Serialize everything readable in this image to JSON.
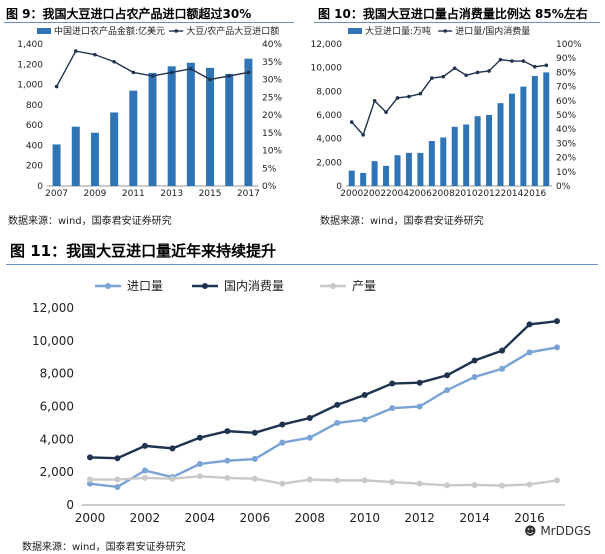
{
  "figures": {
    "fig9": {
      "title": "图 9：我国大豆进口占农产品进口额超过30%",
      "source": "数据来源：wind，国泰君安证券研究"
    },
    "fig10": {
      "title": "图 10：我国大豆进口量占消费量比例达 85%左右",
      "source": "数据来源：wind，国泰君安证券研究"
    },
    "fig11": {
      "title": "图 11：我国大豆进口量近年来持续提升",
      "source": "数据来源：wind，国泰君安证券研究"
    }
  },
  "watermark": "MrDDGS",
  "colors": {
    "bar": "#2f74b5",
    "line_dark": "#1f3350",
    "line_light": "#7aa3d6",
    "line_gray": "#c9c9c9"
  },
  "chart_data": [
    {
      "id": "fig9",
      "type": "bar",
      "title": "图 9：我国大豆进口占农产品进口额超过30%",
      "x": [
        2007,
        2008,
        2009,
        2010,
        2011,
        2012,
        2013,
        2014,
        2015,
        2016,
        2017
      ],
      "xticks": [
        "2007",
        "2009",
        "2011",
        "2013",
        "2015",
        "2017"
      ],
      "series": [
        {
          "name": "中国进口农产品金额:亿美元",
          "type": "bar",
          "axis": "left",
          "values": [
            410,
            585,
            525,
            725,
            940,
            1115,
            1180,
            1215,
            1165,
            1105,
            1255
          ]
        },
        {
          "name": "大豆/农产品大豆进口额",
          "type": "line",
          "axis": "right",
          "values": [
            28,
            38,
            37,
            35,
            32,
            31,
            32,
            33,
            30,
            31,
            32
          ]
        }
      ],
      "ylim_left": [
        0,
        1400
      ],
      "yticks_left": [
        "0",
        "200",
        "400",
        "600",
        "800",
        "1,000",
        "1,200",
        "1,400"
      ],
      "ylim_right": [
        0,
        40
      ],
      "yticks_right": [
        "0%",
        "5%",
        "10%",
        "15%",
        "20%",
        "25%",
        "30%",
        "35%",
        "40%"
      ]
    },
    {
      "id": "fig10",
      "type": "bar",
      "title": "图 10：我国大豆进口量占消费量比例达 85%左右",
      "x": [
        2000,
        2001,
        2002,
        2003,
        2004,
        2005,
        2006,
        2007,
        2008,
        2009,
        2010,
        2011,
        2012,
        2013,
        2014,
        2015,
        2016,
        2017
      ],
      "xticks": [
        "2000",
        "2002",
        "2004",
        "2006",
        "2008",
        "2010",
        "2012",
        "2014",
        "2016"
      ],
      "series": [
        {
          "name": "大豆进口量:万吨",
          "type": "bar",
          "axis": "left",
          "values": [
            1300,
            1100,
            2100,
            1700,
            2600,
            2800,
            2800,
            3800,
            4100,
            5000,
            5200,
            5900,
            6000,
            7000,
            7800,
            8400,
            9300,
            9600
          ]
        },
        {
          "name": "进口量/国内消费量",
          "type": "line",
          "axis": "right",
          "values": [
            45,
            36,
            60,
            52,
            62,
            63,
            65,
            76,
            77,
            83,
            78,
            80,
            81,
            89,
            88,
            88,
            84,
            85
          ]
        }
      ],
      "ylim_left": [
        0,
        12000
      ],
      "yticks_left": [
        "0",
        "2,000",
        "4,000",
        "6,000",
        "8,000",
        "10,000",
        "12,000"
      ],
      "ylim_right": [
        0,
        100
      ],
      "yticks_right": [
        "0%",
        "10%",
        "20%",
        "30%",
        "40%",
        "50%",
        "60%",
        "70%",
        "80%",
        "90%",
        "100%"
      ]
    },
    {
      "id": "fig11",
      "type": "line",
      "title": "图 11：我国大豆进口量近年来持续提升",
      "x": [
        2000,
        2001,
        2002,
        2003,
        2004,
        2005,
        2006,
        2007,
        2008,
        2009,
        2010,
        2011,
        2012,
        2013,
        2014,
        2015,
        2016,
        2017
      ],
      "xticks": [
        "2000",
        "2002",
        "2004",
        "2006",
        "2008",
        "2010",
        "2012",
        "2014",
        "2016"
      ],
      "series": [
        {
          "name": "进口量",
          "values": [
            1300,
            1100,
            2100,
            1700,
            2500,
            2700,
            2800,
            3800,
            4100,
            5000,
            5200,
            5900,
            6000,
            7000,
            7800,
            8300,
            9300,
            9600
          ]
        },
        {
          "name": "国内消费量",
          "values": [
            2900,
            2850,
            3600,
            3450,
            4100,
            4500,
            4400,
            4900,
            5300,
            6100,
            6700,
            7400,
            7450,
            7900,
            8800,
            9400,
            11000,
            11200
          ]
        },
        {
          "name": "产量",
          "values": [
            1550,
            1550,
            1650,
            1600,
            1750,
            1650,
            1600,
            1300,
            1550,
            1500,
            1500,
            1400,
            1300,
            1200,
            1220,
            1180,
            1250,
            1500
          ]
        }
      ],
      "ylim": [
        0,
        12000
      ],
      "yticks": [
        "0",
        "2,000",
        "4,000",
        "6,000",
        "8,000",
        "10,000",
        "12,000"
      ]
    }
  ]
}
